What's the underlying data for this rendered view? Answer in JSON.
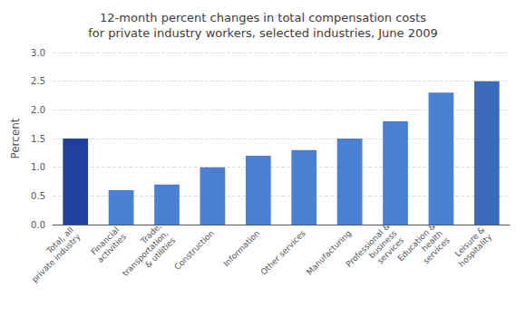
{
  "chart_data": {
    "type": "bar",
    "title": "12-month percent changes in total compensation costs\nfor private industry workers, selected industries, June 2009",
    "ylabel": "Percent",
    "categories": [
      "Total, all\nprivate industry",
      "Financial\nactivities",
      "Trade,\ntransportation,\n& utilities",
      "Construction",
      "Information",
      "Other services",
      "Manufacturing",
      "Professional &\nbusiness\nservices",
      "Education &\nhealth\nservices",
      "Leisure &\nhospitality"
    ],
    "values": [
      1.5,
      0.6,
      0.7,
      1.0,
      1.2,
      1.3,
      1.5,
      1.8,
      2.3,
      2.5
    ],
    "colors": [
      "#2040a0",
      "#4a7fd4",
      "#4a7fd4",
      "#4a7fd4",
      "#4a7fd4",
      "#4a7fd4",
      "#4a7fd4",
      "#4a7fd4",
      "#4a7fd4",
      "#3a6ab8"
    ],
    "ylim": [
      0,
      3.0
    ],
    "yticks": [
      {
        "value": 0,
        "label": "0.0"
      },
      0.5,
      {
        "value": 1,
        "label": "1.0"
      },
      1.5,
      {
        "value": 2,
        "label": "2.0"
      },
      2.5,
      {
        "value": 3,
        "label": "3.0"
      }
    ],
    "grid": true
  }
}
